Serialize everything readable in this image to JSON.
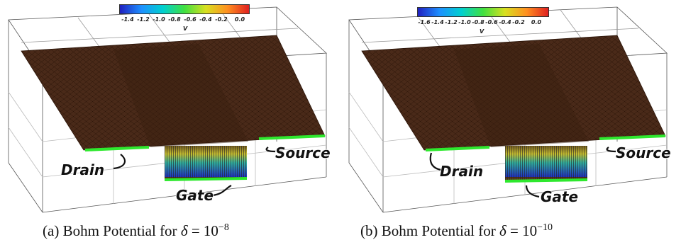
{
  "panels": [
    {
      "tag": "(a)",
      "caption_text": "Bohm Potential for",
      "delta_symbol": "δ",
      "equals": "= 10",
      "exponent": "−8",
      "colorbar": {
        "ticks": [
          "-1.4",
          "-1.2",
          "-1.0",
          "-0.8",
          "-0.6",
          "-0.4",
          "-0.2",
          "0.0"
        ],
        "unit": "V"
      },
      "labels": {
        "drain": "Drain",
        "gate": "Gate",
        "source": "Source"
      }
    },
    {
      "tag": "(b)",
      "caption_text": "Bohm Potential for",
      "delta_symbol": "δ",
      "equals": "= 10",
      "exponent": "−10",
      "colorbar": {
        "ticks": [
          "-1.6",
          "-1.4",
          "-1.2",
          "-1.0",
          "-0.8",
          "-0.6",
          "-0.4",
          "-0.2",
          "0.0"
        ],
        "unit": "V"
      },
      "labels": {
        "drain": "Drain",
        "gate": "Gate",
        "source": "Source"
      }
    }
  ],
  "colors": {
    "surface": "#4a2a19",
    "electrode": "#2ee82e",
    "colormap": [
      "#2020c0",
      "#1e90ff",
      "#00d0d0",
      "#40e040",
      "#d8e020",
      "#ff9020",
      "#e02020"
    ]
  }
}
